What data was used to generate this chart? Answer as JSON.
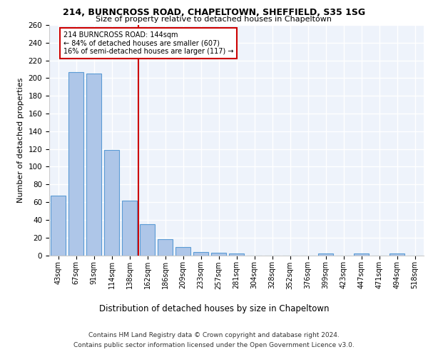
{
  "title_line1": "214, BURNCROSS ROAD, CHAPELTOWN, SHEFFIELD, S35 1SG",
  "title_line2": "Size of property relative to detached houses in Chapeltown",
  "xlabel": "Distribution of detached houses by size in Chapeltown",
  "ylabel": "Number of detached properties",
  "categories": [
    "43sqm",
    "67sqm",
    "91sqm",
    "114sqm",
    "138sqm",
    "162sqm",
    "186sqm",
    "209sqm",
    "233sqm",
    "257sqm",
    "281sqm",
    "304sqm",
    "328sqm",
    "352sqm",
    "376sqm",
    "399sqm",
    "423sqm",
    "447sqm",
    "471sqm",
    "494sqm",
    "518sqm"
  ],
  "values": [
    67,
    207,
    205,
    119,
    62,
    35,
    18,
    9,
    4,
    3,
    2,
    0,
    0,
    0,
    0,
    2,
    0,
    2,
    0,
    2,
    0
  ],
  "bar_color": "#aec6e8",
  "bar_edge_color": "#5b9bd5",
  "background_color": "#eef3fb",
  "grid_color": "#ffffff",
  "vline_x": 4.5,
  "vline_color": "#cc0000",
  "annotation_text": "214 BURNCROSS ROAD: 144sqm\n← 84% of detached houses are smaller (607)\n16% of semi-detached houses are larger (117) →",
  "annotation_box_color": "#ffffff",
  "annotation_box_edge": "#cc0000",
  "footnote1": "Contains HM Land Registry data © Crown copyright and database right 2024.",
  "footnote2": "Contains public sector information licensed under the Open Government Licence v3.0.",
  "ylim": [
    0,
    260
  ],
  "yticks": [
    0,
    20,
    40,
    60,
    80,
    100,
    120,
    140,
    160,
    180,
    200,
    220,
    240,
    260
  ]
}
